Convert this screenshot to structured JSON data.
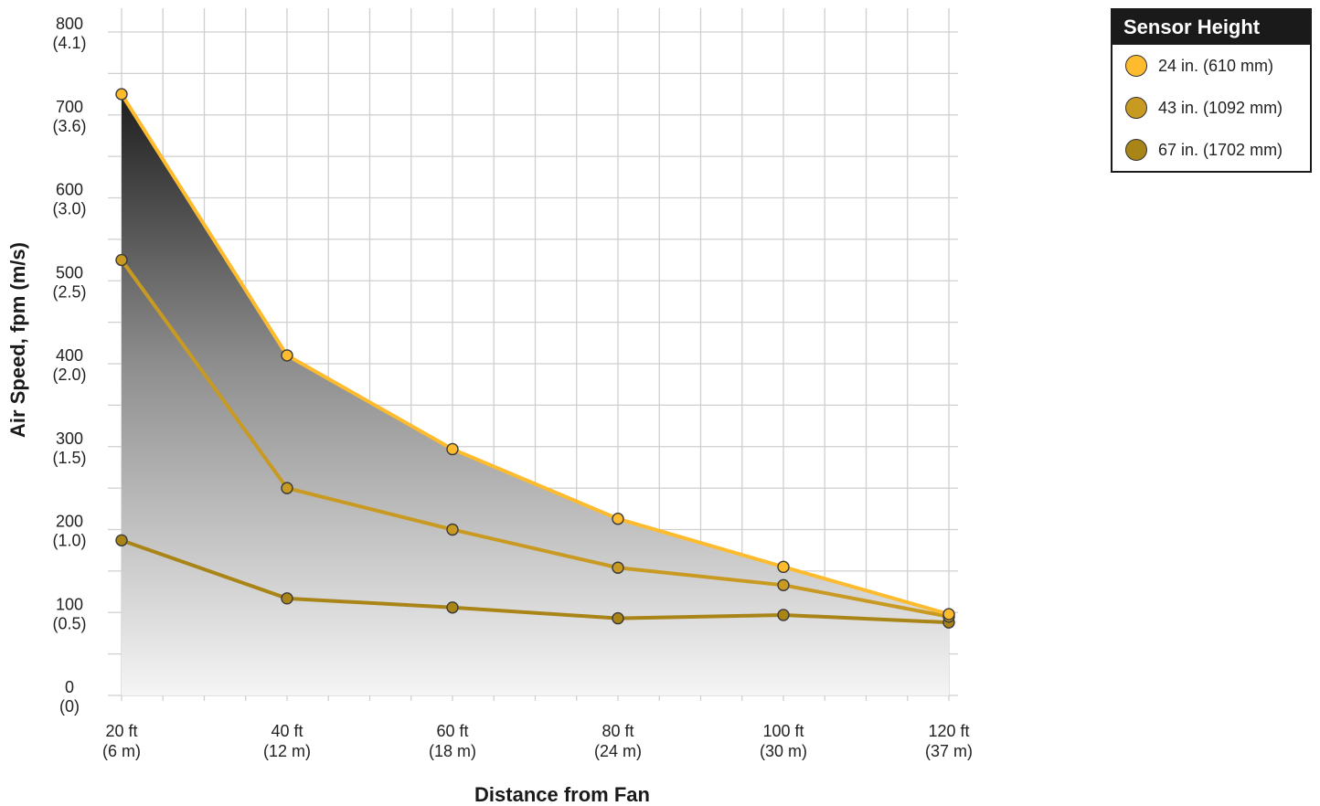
{
  "chart_data": {
    "type": "line",
    "xlabel": "Distance from Fan",
    "ylabel": "Air Speed, fpm (m/s)",
    "x": [
      20,
      40,
      60,
      80,
      100,
      120
    ],
    "x_tick_labels": [
      {
        "value": 20,
        "line1": "20 ft",
        "line2": "(6 m)"
      },
      {
        "value": 40,
        "line1": "40 ft",
        "line2": "(12 m)"
      },
      {
        "value": 60,
        "line1": "60 ft",
        "line2": "(18 m)"
      },
      {
        "value": 80,
        "line1": "80 ft",
        "line2": "(24 m)"
      },
      {
        "value": 100,
        "line1": "100 ft",
        "line2": "(30 m)"
      },
      {
        "value": 120,
        "line1": "120 ft",
        "line2": "(37 m)"
      }
    ],
    "y_tick_labels": [
      {
        "value": 0,
        "line1": "0",
        "line2": "(0)"
      },
      {
        "value": 100,
        "line1": "100",
        "line2": "(0.5)"
      },
      {
        "value": 200,
        "line1": "200",
        "line2": "(1.0)"
      },
      {
        "value": 300,
        "line1": "300",
        "line2": "(1.5)"
      },
      {
        "value": 400,
        "line1": "400",
        "line2": "(2.0)"
      },
      {
        "value": 500,
        "line1": "500",
        "line2": "(2.5)"
      },
      {
        "value": 600,
        "line1": "600",
        "line2": "(3.0)"
      },
      {
        "value": 700,
        "line1": "700",
        "line2": "(3.6)"
      },
      {
        "value": 800,
        "line1": "800",
        "line2": "(4.1)"
      }
    ],
    "xlim": [
      18,
      120
    ],
    "ylim": [
      0,
      815
    ],
    "grid": true,
    "x_minor_step": 5,
    "y_minor_step": 50,
    "shaded_area_under": "24 in. (610 mm)",
    "series": [
      {
        "name": "24 in. (610 mm)",
        "color": "#FDBB2D",
        "values": [
          725,
          410,
          297,
          213,
          155,
          98
        ]
      },
      {
        "name": "43 in. (1092 mm)",
        "color": "#C99A22",
        "values": [
          525,
          250,
          200,
          154,
          133,
          95
        ]
      },
      {
        "name": "67 in. (1702 mm)",
        "color": "#A98417",
        "values": [
          187,
          117,
          106,
          93,
          97,
          88
        ]
      }
    ],
    "legend": {
      "title": "Sensor Height",
      "placement": "top-right"
    }
  }
}
